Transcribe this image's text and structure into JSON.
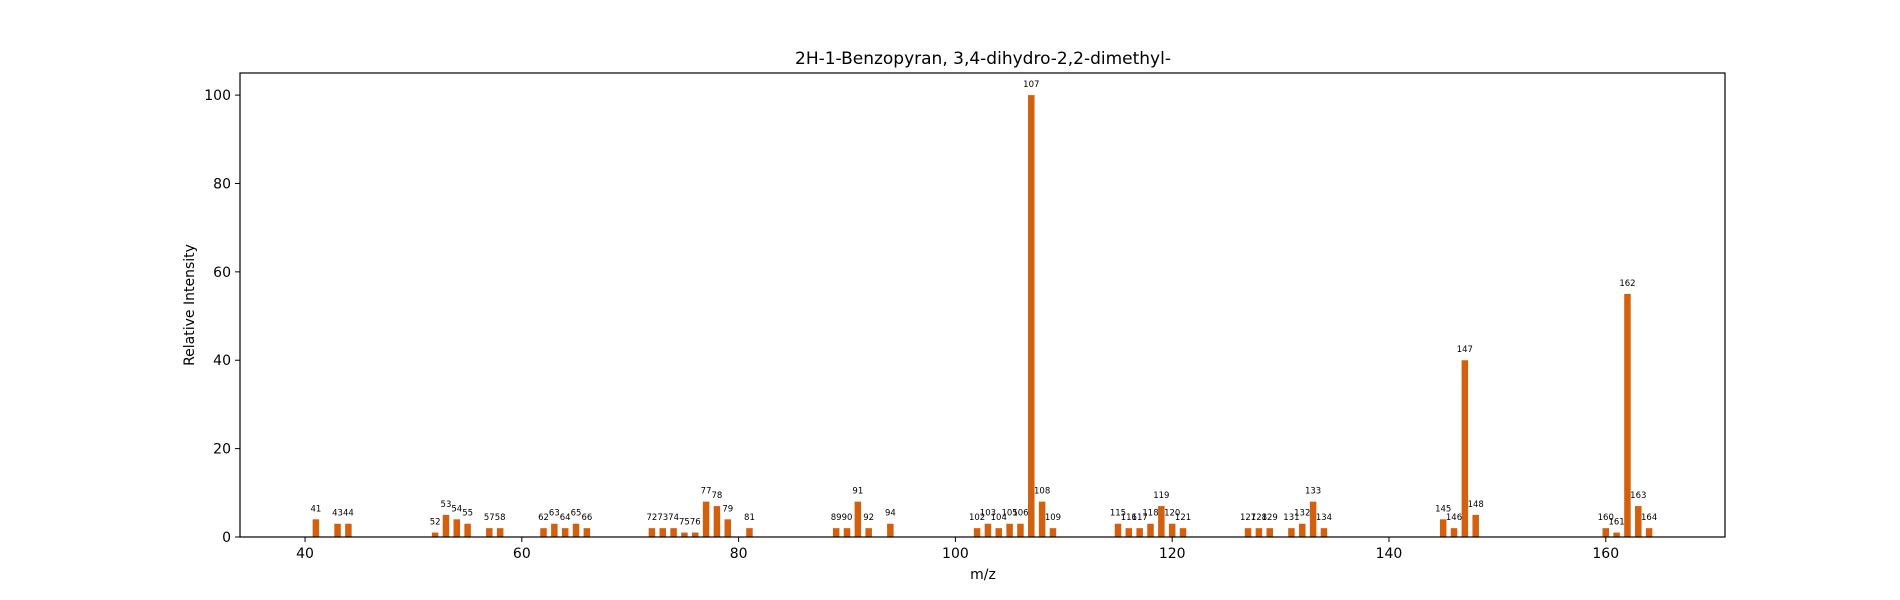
{
  "chart_data": {
    "type": "bar",
    "title": "2H-1-Benzopyran, 3,4-dihydro-2,2-dimethyl-",
    "xlabel": "m/z",
    "ylabel": "Relative Intensity",
    "xlim": [
      34,
      171
    ],
    "ylim": [
      0,
      105
    ],
    "x_ticks": [
      40,
      60,
      80,
      100,
      120,
      140,
      160
    ],
    "y_ticks": [
      0,
      20,
      40,
      60,
      80,
      100
    ],
    "grid": false,
    "bar_color": "#d2600f",
    "x": [
      41,
      43,
      44,
      52,
      53,
      54,
      55,
      57,
      58,
      62,
      63,
      64,
      65,
      66,
      72,
      73,
      74,
      75,
      76,
      77,
      78,
      79,
      81,
      89,
      90,
      91,
      92,
      94,
      102,
      103,
      104,
      105,
      106,
      107,
      108,
      109,
      115,
      116,
      117,
      118,
      119,
      120,
      121,
      127,
      128,
      129,
      131,
      132,
      133,
      134,
      145,
      146,
      147,
      148,
      160,
      161,
      162,
      163,
      164
    ],
    "values": [
      4,
      3,
      3,
      1,
      5,
      4,
      3,
      2,
      2,
      2,
      3,
      2,
      3,
      2,
      2,
      2,
      2,
      1,
      1,
      8,
      7,
      4,
      2,
      2,
      2,
      8,
      2,
      3,
      2,
      3,
      2,
      3,
      3,
      100,
      8,
      2,
      3,
      2,
      2,
      3,
      7,
      3,
      2,
      2,
      2,
      2,
      2,
      3,
      8,
      2,
      4,
      2,
      40,
      5,
      2,
      1,
      55,
      7,
      2
    ],
    "labels": [
      "41",
      "43",
      "44",
      "52",
      "53",
      "54",
      "55",
      "57",
      "58",
      "62",
      "63",
      "64",
      "65",
      "66",
      "72",
      "73",
      "74",
      "75",
      "76",
      "77",
      "78",
      "79",
      "81",
      "89",
      "90",
      "91",
      "92",
      "94",
      "102",
      "103",
      "104",
      "105",
      "106",
      "107",
      "108",
      "109",
      "115",
      "116",
      "117",
      "118",
      "119",
      "120",
      "121",
      "127",
      "128",
      "129",
      "131",
      "132",
      "133",
      "134",
      "145",
      "146",
      "147",
      "148",
      "160",
      "161",
      "162",
      "163",
      "164"
    ]
  }
}
